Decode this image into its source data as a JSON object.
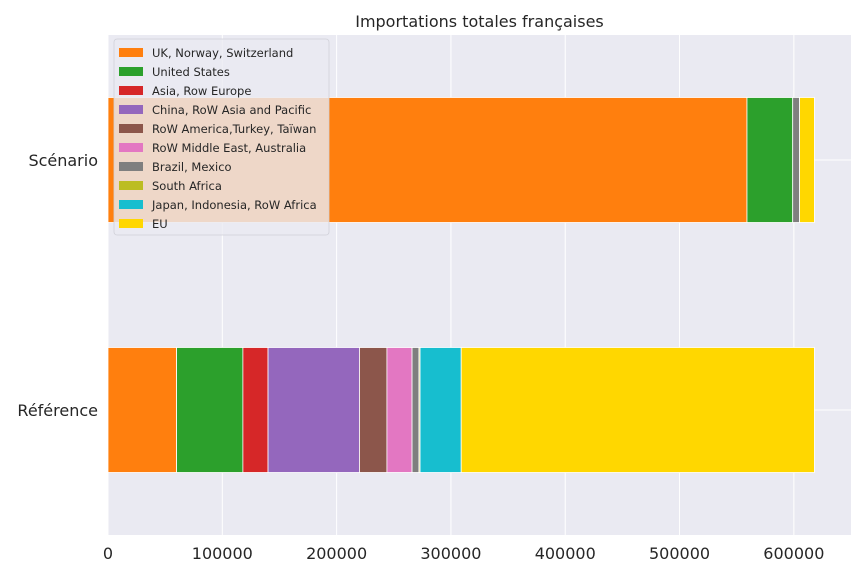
{
  "chart_data": {
    "type": "bar",
    "orientation": "horizontal",
    "stacked": true,
    "title": "Importations totales françaises",
    "xlabel": "",
    "ylabel": "",
    "xlim": [
      0,
      650000
    ],
    "xticks": [
      0,
      100000,
      200000,
      300000,
      400000,
      500000,
      600000
    ],
    "xtick_labels": [
      "0",
      "100000",
      "200000",
      "300000",
      "400000",
      "500000",
      "600000"
    ],
    "categories": [
      "Référence",
      "Scénario"
    ],
    "grid": true,
    "legend_position": "top-left",
    "series": [
      {
        "name": "UK, Norway, Switzerland",
        "color": "#ff7f0e",
        "values": [
          60000,
          559000
        ]
      },
      {
        "name": "United States",
        "color": "#2ca02c",
        "values": [
          58000,
          40000
        ]
      },
      {
        "name": "Asia, Row Europe",
        "color": "#d62728",
        "values": [
          22000,
          0
        ]
      },
      {
        "name": "China, RoW Asia and Pacific",
        "color": "#9467bd",
        "values": [
          80000,
          0
        ]
      },
      {
        "name": "RoW America,Turkey, Taïwan",
        "color": "#8c564b",
        "values": [
          24000,
          0
        ]
      },
      {
        "name": "RoW Middle East, Australia",
        "color": "#e377c2",
        "values": [
          22000,
          0
        ]
      },
      {
        "name": "Brazil, Mexico",
        "color": "#7f7f7f",
        "values": [
          6000,
          6000
        ]
      },
      {
        "name": "South Africa",
        "color": "#bcbd22",
        "values": [
          1000,
          0
        ]
      },
      {
        "name": "Japan, Indonesia, RoW Africa",
        "color": "#17becf",
        "values": [
          36000,
          0
        ]
      },
      {
        "name": "EU",
        "color": "#ffd700",
        "values": [
          309000,
          13000
        ]
      }
    ]
  },
  "colors": {
    "plot_background": "#eaeaf2",
    "grid": "#ffffff"
  }
}
